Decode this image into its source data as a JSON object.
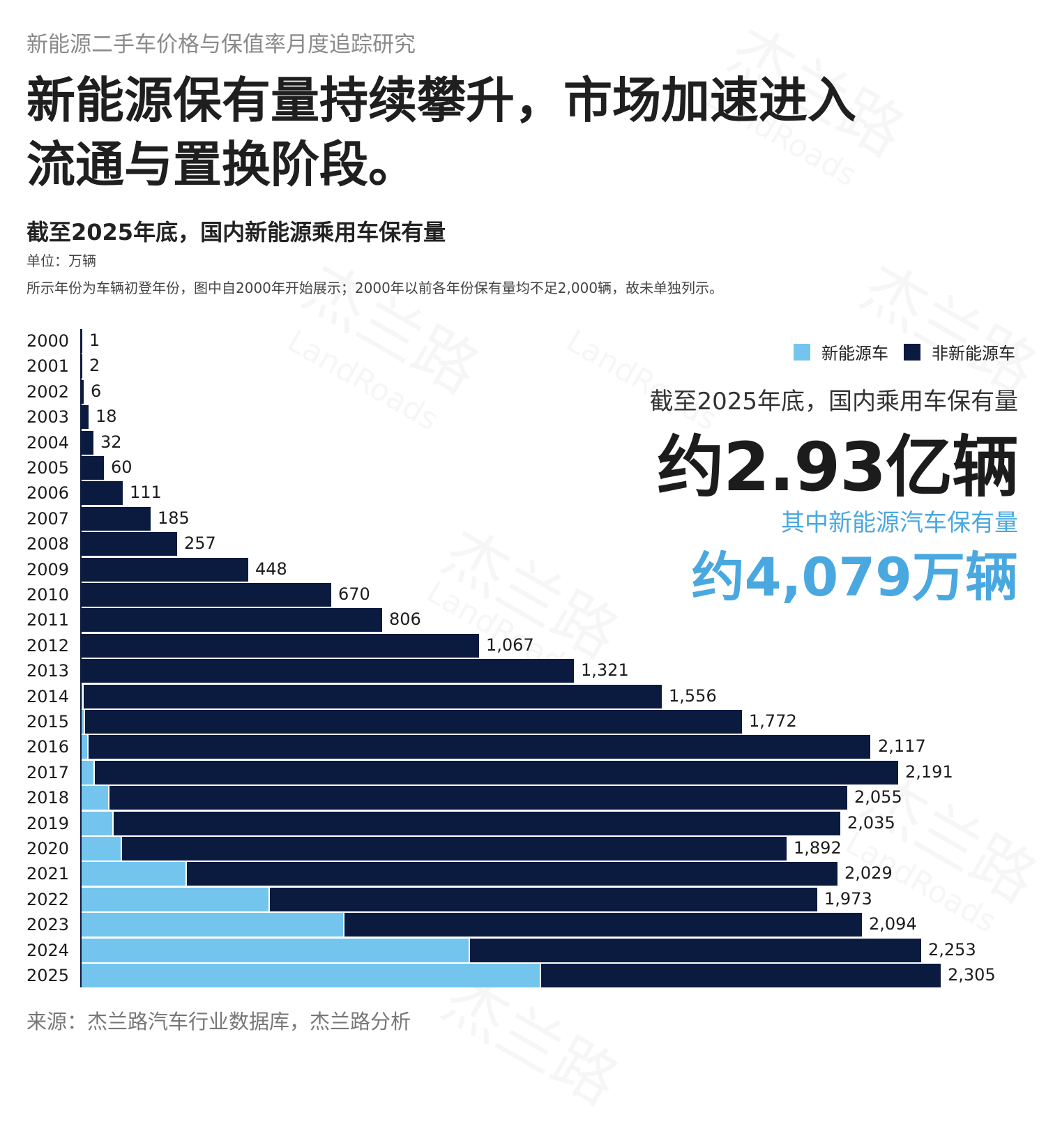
{
  "header": {
    "series_title": "新能源二手车价格与保值率月度追踪研究",
    "headline": "新能源保有量持续攀升，市场加速进入流通与置换阶段。"
  },
  "chart_header": {
    "title": "截至2025年底，国内新能源乘用车保有量",
    "unit": "单位：万辆",
    "note": "所示年份为车辆初登年份，图中自2000年开始展示；2000年以前各年份保有量均不足2,000辆，故未单独列示。"
  },
  "legend": {
    "nev_label": "新能源车",
    "ice_label": "非新能源车",
    "nev_color": "#74c5ee",
    "ice_color": "#0b1a3f"
  },
  "kpis": {
    "total_label": "截至2025年底，国内乘用车保有量",
    "total_value": "约2.93亿辆",
    "nev_label": "其中新能源汽车保有量",
    "nev_value": "约4,079万辆"
  },
  "watermark": {
    "cn": "杰兰路",
    "en": "LandRoads"
  },
  "chart_data": {
    "type": "bar",
    "orientation": "horizontal",
    "stacked": true,
    "title": "截至2025年底，国内新能源乘用车保有量",
    "xlabel": "",
    "ylabel": "车辆初登年份",
    "unit": "万辆",
    "grid": false,
    "legend_position": "top-right",
    "categories": [
      "2000",
      "2001",
      "2002",
      "2003",
      "2004",
      "2005",
      "2006",
      "2007",
      "2008",
      "2009",
      "2010",
      "2011",
      "2012",
      "2013",
      "2014",
      "2015",
      "2016",
      "2017",
      "2018",
      "2019",
      "2020",
      "2021",
      "2022",
      "2023",
      "2024",
      "2025"
    ],
    "totals": [
      1,
      2,
      6,
      18,
      32,
      60,
      111,
      185,
      257,
      448,
      670,
      806,
      1067,
      1321,
      1556,
      1772,
      2117,
      2191,
      2055,
      2035,
      1892,
      2029,
      1973,
      2094,
      2253,
      2305
    ],
    "total_labels": [
      "1",
      "2",
      "6",
      "18",
      "32",
      "60",
      "111",
      "185",
      "257",
      "448",
      "670",
      "806",
      "1,067",
      "1,321",
      "1,556",
      "1,772",
      "2,117",
      "2,191",
      "2,055",
      "2,035",
      "1,892",
      "2,029",
      "1,973",
      "2,094",
      "2,253",
      "2,305"
    ],
    "series": [
      {
        "name": "新能源车",
        "color": "#74c5ee",
        "values": [
          0,
          0,
          0,
          0,
          0,
          0,
          0,
          0,
          0,
          0,
          0,
          0,
          0,
          0,
          1,
          5,
          15,
          32,
          71,
          82,
          105,
          279,
          501,
          702,
          1038,
          1229
        ]
      },
      {
        "name": "非新能源车",
        "color": "#0b1a3f",
        "values": [
          1,
          2,
          6,
          18,
          32,
          60,
          111,
          185,
          257,
          448,
          670,
          806,
          1067,
          1321,
          1555,
          1767,
          2102,
          2159,
          1984,
          1953,
          1787,
          1750,
          1472,
          1392,
          1215,
          1076
        ]
      }
    ],
    "xlim": [
      0,
      2305
    ]
  },
  "footer": {
    "source": "来源：杰兰路汽车行业数据库，杰兰路分析"
  }
}
